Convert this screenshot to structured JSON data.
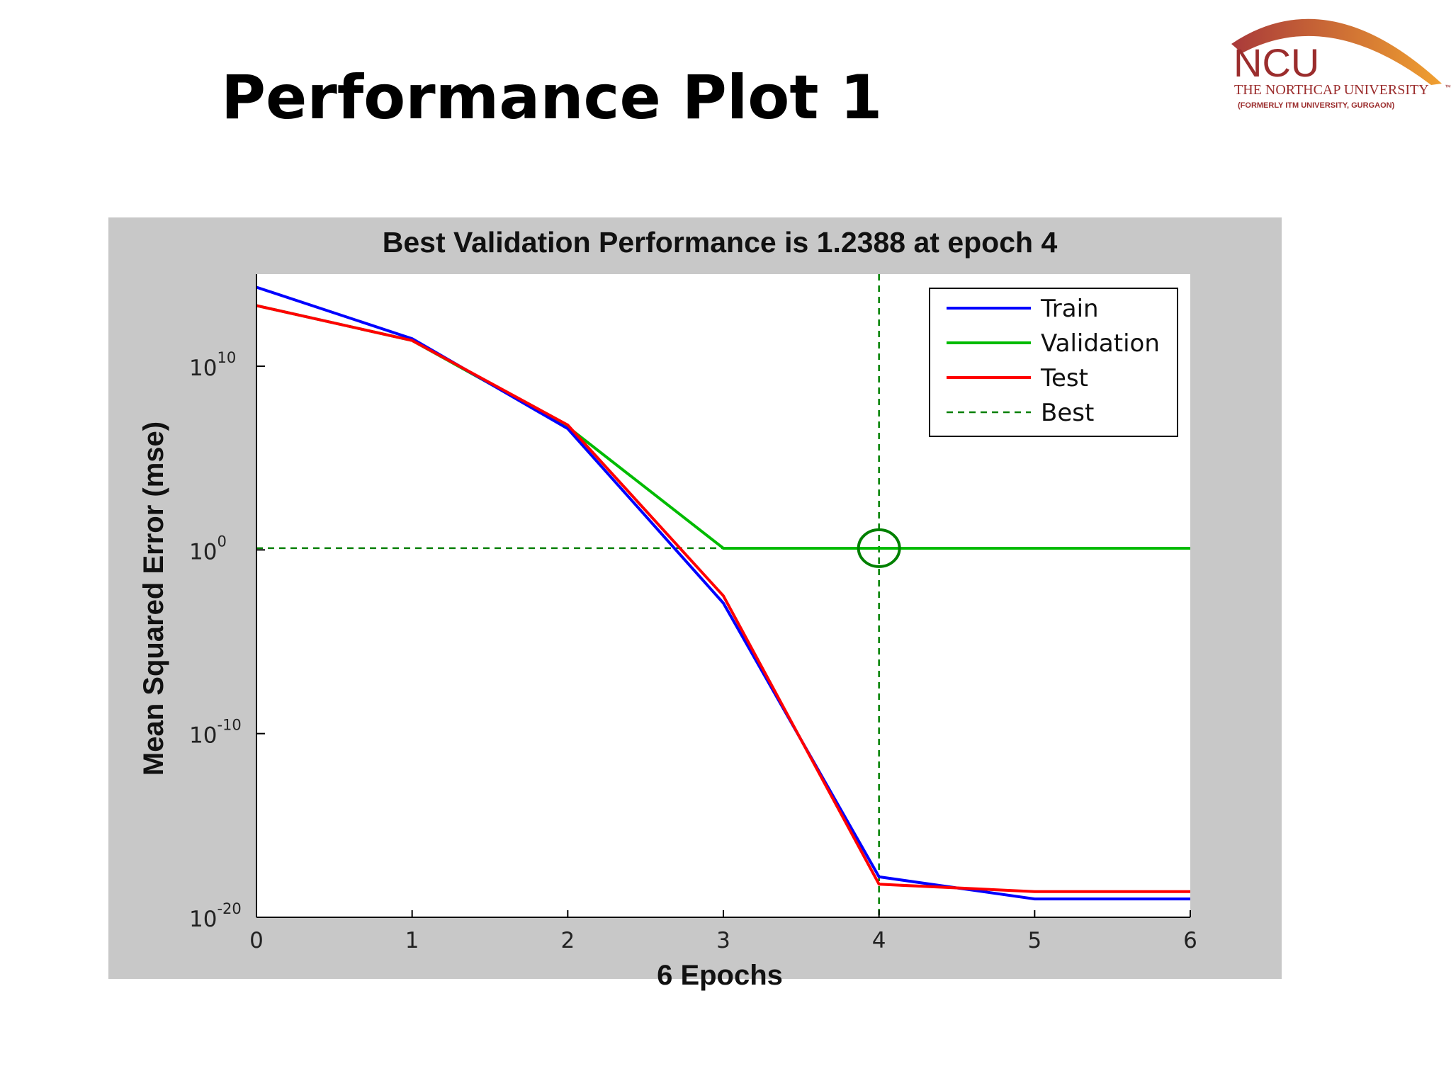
{
  "slide": {
    "title": "Performance Plot 1"
  },
  "logo": {
    "brand": "NCU",
    "name": "THE NORTHCAP UNIVERSITY",
    "tagline": "(FORMERLY ITM UNIVERSITY, GURGAON)",
    "trademark": "™",
    "arc_color_left": "#a93a3a",
    "arc_color_right": "#f0a030",
    "text_color": "#9b2d2d"
  },
  "colors": {
    "figure_bg": "#c8c8c8",
    "axes_bg": "#ffffff",
    "train": "#0000ff",
    "validation": "#00bb00",
    "test": "#ff0000",
    "best": "#008000"
  },
  "chart_data": {
    "type": "line",
    "title": "Best Validation Performance is 1.2388 at epoch 4",
    "xlabel": "6 Epochs",
    "ylabel": "Mean Squared Error  (mse)",
    "xlim": [
      0,
      6
    ],
    "ylim_log10": [
      -20,
      15
    ],
    "yscale": "log",
    "xticks": [
      "0",
      "1",
      "2",
      "3",
      "4",
      "5",
      "6"
    ],
    "yticks": [
      {
        "base": "10",
        "exp": "10",
        "log10": 10
      },
      {
        "base": "10",
        "exp": "0",
        "log10": 0
      },
      {
        "base": "10",
        "exp": "-10",
        "log10": -10
      },
      {
        "base": "10",
        "exp": "-20",
        "log10": -20
      }
    ],
    "grid": false,
    "legend_position": "top-right",
    "series": [
      {
        "name": "Train",
        "key": "train",
        "x": [
          0,
          1,
          2,
          3,
          4,
          5,
          6
        ],
        "log10_y": [
          14.3,
          11.5,
          6.6,
          -2.9,
          -17.8,
          -19.0,
          -19.0
        ]
      },
      {
        "name": "Validation",
        "key": "validation",
        "x": [
          0,
          1,
          2,
          3,
          4,
          5,
          6
        ],
        "log10_y": [
          13.3,
          11.4,
          6.7,
          0.09,
          0.09,
          0.09,
          0.09
        ]
      },
      {
        "name": "Test",
        "key": "test",
        "x": [
          0,
          1,
          2,
          3,
          4,
          5,
          6
        ],
        "log10_y": [
          13.3,
          11.4,
          6.8,
          -2.5,
          -18.2,
          -18.6,
          -18.6
        ]
      }
    ],
    "best": {
      "name": "Best",
      "epoch": 4,
      "value": 1.2388
    }
  }
}
